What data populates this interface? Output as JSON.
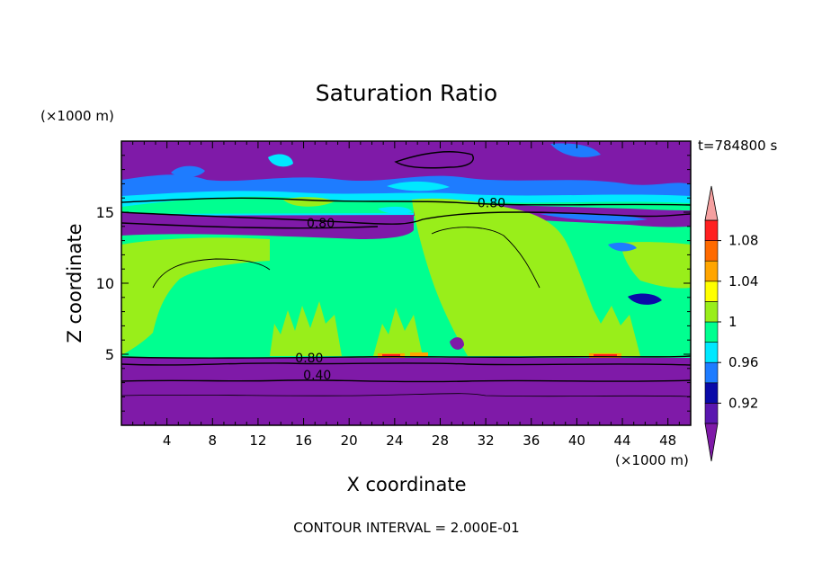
{
  "chart_data": {
    "type": "heatmap",
    "title": "Saturation Ratio",
    "xlabel": "X coordinate",
    "ylabel": "Z coordinate",
    "x_unit_label": "(×1000 m)",
    "y_unit_label": "(×1000 m)",
    "time_label": "t=784800 s",
    "footer": "CONTOUR INTERVAL = 2.000E-01",
    "xlim": [
      0,
      50
    ],
    "ylim": [
      0,
      20
    ],
    "x_ticks": [
      4,
      8,
      12,
      16,
      20,
      24,
      28,
      32,
      36,
      40,
      44,
      48
    ],
    "y_ticks": [
      5,
      10,
      15
    ],
    "contour_labels": [
      {
        "text": "0.80",
        "x": 17.5,
        "z": 14.0
      },
      {
        "text": "0.80",
        "x": 32.5,
        "z": 15.4
      },
      {
        "text": "0.80",
        "x": 16.5,
        "z": 4.5
      },
      {
        "text": "0.40",
        "x": 17.2,
        "z": 3.3
      }
    ],
    "colorbar": {
      "min_arrow_color": "#7f1aa8",
      "max_arrow_color": "#f5a0a0",
      "bands": [
        {
          "from": 0.9,
          "to": 0.92,
          "color": "#5a17b0"
        },
        {
          "from": 0.92,
          "to": 0.94,
          "color": "#0a0aa8"
        },
        {
          "from": 0.94,
          "to": 0.96,
          "color": "#1e7cff"
        },
        {
          "from": 0.96,
          "to": 0.98,
          "color": "#00e8ff"
        },
        {
          "from": 0.98,
          "to": 1.0,
          "color": "#00ff90"
        },
        {
          "from": 1.0,
          "to": 1.02,
          "color": "#99ee1a"
        },
        {
          "from": 1.02,
          "to": 1.04,
          "color": "#ffff00"
        },
        {
          "from": 1.04,
          "to": 1.06,
          "color": "#ffa500"
        },
        {
          "from": 1.06,
          "to": 1.08,
          "color": "#ff6a00"
        },
        {
          "from": 1.08,
          "to": 1.1,
          "color": "#ff2020"
        }
      ],
      "tick_labels": [
        "0.92",
        "0.96",
        "1",
        "1.04",
        "1.08"
      ]
    },
    "colors": {
      "dry": "#7f1aa8",
      "saturated_low": "#00ff90",
      "saturated_high": "#99ee1a",
      "moist_blue": "#1e7cff",
      "cyan": "#00e8ff",
      "deep_blue": "#0a0aa8",
      "supersat_orange": "#ffa500",
      "supersat_red": "#ff2020"
    }
  }
}
